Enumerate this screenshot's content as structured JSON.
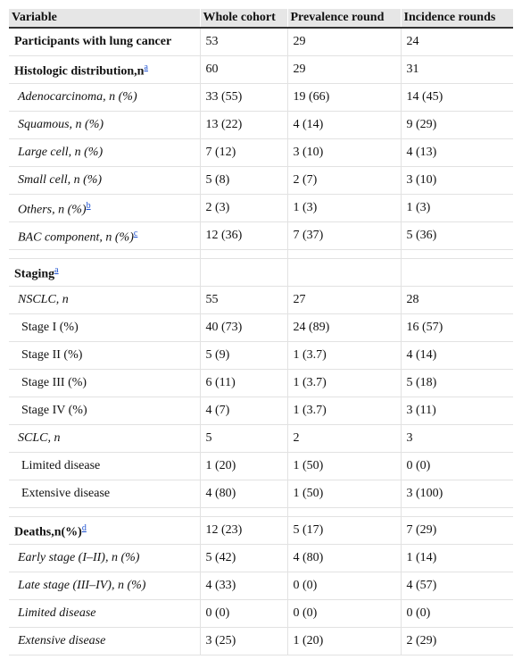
{
  "table": {
    "header": [
      "Variable",
      "Whole cohort",
      "Prevalence round",
      "Incidence rounds"
    ],
    "groups": [
      {
        "rows": [
          {
            "kind": "section",
            "label": "Participants with lung cancer",
            "values": [
              "53",
              "29",
              "24"
            ]
          },
          {
            "kind": "section",
            "label": "Histologic distribution,n",
            "note": "a",
            "values": [
              "60",
              "29",
              "31"
            ]
          },
          {
            "kind": "item",
            "label": "Adenocarcinoma, n (%)",
            "values": [
              "33 (55)",
              "19 (66)",
              "14 (45)"
            ]
          },
          {
            "kind": "item",
            "label": "Squamous, n (%)",
            "values": [
              "13 (22)",
              "4 (14)",
              "9 (29)"
            ]
          },
          {
            "kind": "item",
            "label": "Large cell, n (%)",
            "values": [
              "7 (12)",
              "3 (10)",
              "4 (13)"
            ]
          },
          {
            "kind": "item",
            "label": "Small cell, n (%)",
            "values": [
              "5 (8)",
              "2 (7)",
              "3 (10)"
            ]
          },
          {
            "kind": "item",
            "label": "Others, n (%)",
            "note": "b",
            "values": [
              "2 (3)",
              "1 (3)",
              "1 (3)"
            ]
          },
          {
            "kind": "item",
            "label": "BAC component, n (%)",
            "note": "c",
            "values": [
              "12 (36)",
              "7 (37)",
              "5 (36)"
            ]
          }
        ]
      },
      {
        "rows": [
          {
            "kind": "section",
            "label": "Staging",
            "note": "a",
            "values": []
          },
          {
            "kind": "item",
            "label": "NSCLC, n",
            "values": [
              "55",
              "27",
              "28"
            ]
          },
          {
            "kind": "sub",
            "label": "Stage I (%)",
            "values": [
              "40 (73)",
              "24 (89)",
              "16 (57)"
            ]
          },
          {
            "kind": "sub",
            "label": "Stage II (%)",
            "values": [
              "5 (9)",
              "1 (3.7)",
              "4 (14)"
            ]
          },
          {
            "kind": "sub",
            "label": "Stage III (%)",
            "values": [
              "6 (11)",
              "1 (3.7)",
              "5 (18)"
            ]
          },
          {
            "kind": "sub",
            "label": "Stage IV (%)",
            "values": [
              "4 (7)",
              "1 (3.7)",
              "3 (11)"
            ]
          },
          {
            "kind": "item",
            "label": "SCLC, n",
            "values": [
              "5",
              "2",
              "3"
            ]
          },
          {
            "kind": "sub",
            "label": "Limited disease",
            "values": [
              "1 (20)",
              "1 (50)",
              "0 (0)"
            ]
          },
          {
            "kind": "sub",
            "label": "Extensive disease",
            "values": [
              "4 (80)",
              "1 (50)",
              "3 (100)"
            ]
          }
        ]
      },
      {
        "rows": [
          {
            "kind": "section",
            "label": "Deaths,n(%)",
            "note": "d",
            "values": [
              "12 (23)",
              "5 (17)",
              "7 (29)"
            ]
          },
          {
            "kind": "item",
            "label": "Early stage (I–II), n (%)",
            "values": [
              "5 (42)",
              "4 (80)",
              "1 (14)"
            ]
          },
          {
            "kind": "item",
            "label": "Late stage (III–IV), n (%)",
            "values": [
              "4 (33)",
              "0 (0)",
              "4 (57)"
            ]
          },
          {
            "kind": "item",
            "label": "Limited disease",
            "values": [
              "0 (0)",
              "0 (0)",
              "0 (0)"
            ]
          },
          {
            "kind": "item",
            "label": "Extensive disease",
            "values": [
              "3 (25)",
              "1 (20)",
              "2 (29)"
            ]
          }
        ]
      }
    ]
  }
}
